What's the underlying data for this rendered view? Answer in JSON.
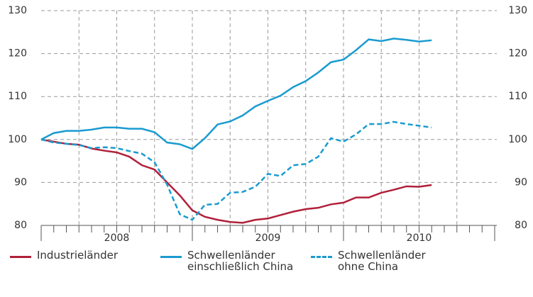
{
  "chart_data": {
    "type": "line",
    "x": [
      2008,
      2008.083,
      2008.167,
      2008.25,
      2008.333,
      2008.417,
      2008.5,
      2008.583,
      2008.667,
      2008.75,
      2008.833,
      2008.917,
      2009,
      2009.083,
      2009.167,
      2009.25,
      2009.333,
      2009.417,
      2009.5,
      2009.583,
      2009.667,
      2009.75,
      2009.833,
      2009.917,
      2010,
      2010.083,
      2010.167,
      2010.25,
      2010.333,
      2010.417,
      2010.5,
      2010.583
    ],
    "xlim": [
      2008,
      2011
    ],
    "xticks": [
      {
        "value": 2008.5,
        "label": "2008"
      },
      {
        "value": 2009.5,
        "label": "2009"
      },
      {
        "value": 2010.5,
        "label": "2010"
      }
    ],
    "ylim": [
      80,
      130
    ],
    "yticks": [
      80,
      90,
      100,
      110,
      120,
      130
    ],
    "y2lim": [
      80,
      130
    ],
    "y2ticks": [
      80,
      90,
      100,
      110,
      120,
      130
    ],
    "grid": true,
    "series": [
      {
        "name": "Industrieländer",
        "color": "#b0203a",
        "dash": false,
        "values": [
          100,
          99.5,
          99,
          98.8,
          97.9,
          97.4,
          97,
          96,
          94,
          93,
          90,
          87,
          83.5,
          82,
          81.3,
          80.8,
          80.6,
          81.3,
          81.6,
          82.4,
          83.2,
          83.8,
          84.1,
          84.9,
          85.3,
          86.5,
          86.5,
          87.6,
          88.3,
          89.1,
          89,
          89.4
        ]
      },
      {
        "name": "Schwellenländer einschließlich China",
        "color": "#1a9bd0",
        "dash": false,
        "values": [
          100,
          101.5,
          102,
          102,
          102.3,
          102.8,
          102.8,
          102.5,
          102.5,
          101.7,
          99.3,
          98.9,
          97.8,
          100.3,
          103.5,
          104.2,
          105.6,
          107.7,
          109,
          110.2,
          112.2,
          113.6,
          115.6,
          118,
          118.6,
          120.8,
          123.3,
          122.9,
          123.5,
          123.2,
          122.8,
          123.1
        ]
      },
      {
        "name": "Schwellenländer ohne China",
        "color": "#1a9bd0",
        "dash": true,
        "values": [
          100,
          99.3,
          99,
          98.7,
          98,
          98.2,
          98,
          97.3,
          96.7,
          94.7,
          89.5,
          82.6,
          81.3,
          84.8,
          85,
          87.6,
          87.8,
          89,
          92,
          91.5,
          94,
          94.3,
          96,
          100.3,
          99.5,
          101.2,
          103.6,
          103.6,
          104.1,
          103.6,
          103.2,
          102.8
        ]
      }
    ]
  }
}
